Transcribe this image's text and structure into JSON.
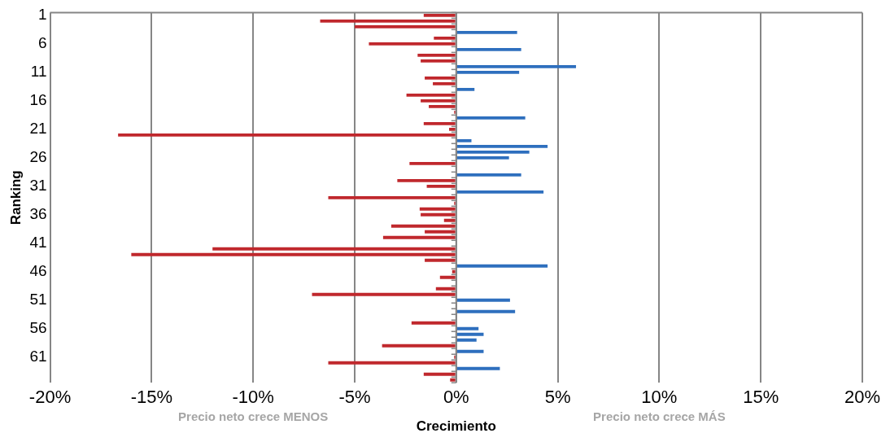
{
  "chart_data": {
    "type": "bar",
    "orientation": "horizontal",
    "ylabel": "Ranking",
    "xlabel": "Crecimiento",
    "annotations": [
      "Precio neto crece MENOS",
      "Precio neto crece MÁS"
    ],
    "categories": [
      "1",
      null,
      null,
      null,
      null,
      "6",
      null,
      null,
      null,
      null,
      "11",
      null,
      null,
      null,
      null,
      "16",
      null,
      null,
      null,
      null,
      "21",
      null,
      null,
      null,
      null,
      "26",
      null,
      null,
      null,
      null,
      "31",
      null,
      null,
      null,
      null,
      "36",
      null,
      null,
      null,
      null,
      "41",
      null,
      null,
      null,
      null,
      "46",
      null,
      null,
      null,
      null,
      "51",
      null,
      null,
      null,
      null,
      "56",
      null,
      null,
      null,
      null,
      "61",
      null,
      null,
      null,
      null
    ],
    "values": [
      -1.6,
      -6.7,
      -5.0,
      3.0,
      -1.1,
      -4.3,
      3.2,
      -1.9,
      -1.75,
      5.9,
      3.1,
      -1.55,
      -1.15,
      0.9,
      -2.45,
      -1.75,
      -1.35,
      -0.1,
      3.4,
      -1.6,
      -0.35,
      -16.65,
      0.75,
      4.5,
      3.6,
      2.6,
      -2.3,
      null,
      3.2,
      -2.9,
      -1.45,
      4.3,
      -6.3,
      -0.1,
      -1.8,
      -1.75,
      -0.6,
      -3.2,
      -1.55,
      -3.6,
      null,
      -12.0,
      -16.0,
      -1.55,
      4.5,
      -0.2,
      -0.8,
      null,
      -1.0,
      -7.1,
      2.65,
      null,
      2.9,
      null,
      -2.2,
      1.1,
      1.35,
      1.0,
      -3.65,
      1.35,
      -0.1,
      -6.3,
      2.15,
      -1.6,
      -0.3
    ],
    "colors": [
      "#c0282d",
      "#c0282d",
      "#c0282d",
      "#2e6fbe",
      "#c0282d",
      "#c0282d",
      "#2e6fbe",
      "#c0282d",
      "#c0282d",
      "#2e6fbe",
      "#2e6fbe",
      "#c0282d",
      "#c0282d",
      "#2e6fbe",
      "#c0282d",
      "#c0282d",
      "#c0282d",
      "#c0282d",
      "#2e6fbe",
      "#c0282d",
      "#c0282d",
      "#c0282d",
      "#2e6fbe",
      "#2e6fbe",
      "#2e6fbe",
      "#2e6fbe",
      "#c0282d",
      "#c0282d",
      "#2e6fbe",
      "#c0282d",
      "#c0282d",
      "#2e6fbe",
      "#c0282d",
      "#c0282d",
      "#c0282d",
      "#c0282d",
      "#c0282d",
      "#c0282d",
      "#c0282d",
      "#c0282d",
      "#c0282d",
      "#c0282d",
      "#c0282d",
      "#c0282d",
      "#2e6fbe",
      "#c0282d",
      "#c0282d",
      "#c0282d",
      "#c0282d",
      "#c0282d",
      "#2e6fbe",
      "#2e6fbe",
      "#2e6fbe",
      "#2e6fbe",
      "#c0282d",
      "#2e6fbe",
      "#2e6fbe",
      "#2e6fbe",
      "#c0282d",
      "#2e6fbe",
      "#c0282d",
      "#c0282d",
      "#2e6fbe",
      "#c0282d",
      "#c0282d"
    ],
    "xlim": [
      -20,
      20
    ],
    "xticks": [
      {
        "value": -20,
        "label": "-20%"
      },
      {
        "value": -15,
        "label": "-15%"
      },
      {
        "value": -10,
        "label": "-10%"
      },
      {
        "value": -5,
        "label": "-5%"
      },
      {
        "value": 0,
        "label": "0%"
      },
      {
        "value": 5,
        "label": "5%"
      },
      {
        "value": 10,
        "label": "10%"
      },
      {
        "value": 15,
        "label": "15%"
      },
      {
        "value": 20,
        "label": "20%"
      }
    ],
    "grid": "x",
    "legend": false
  }
}
